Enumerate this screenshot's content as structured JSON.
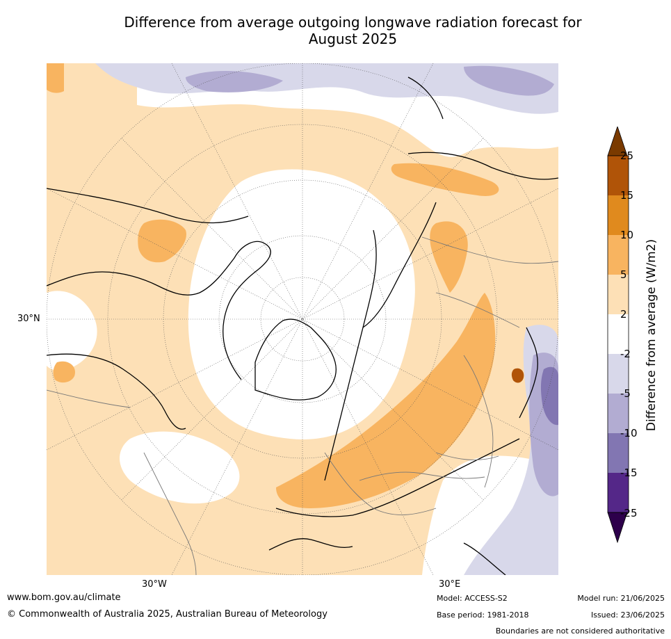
{
  "title_line1": "Difference from average outgoing longwave radiation forecast for",
  "title_line2": "August 2025",
  "map": {
    "latitude_label": "30°N",
    "longitude_labels": [
      "30°W",
      "30°E"
    ]
  },
  "colorbar": {
    "label": "Difference from average (W/m2)",
    "ticks": [
      "25",
      "15",
      "10",
      "5",
      "2",
      "-2",
      "-5",
      "-10",
      "-15",
      "-25"
    ],
    "colors": [
      "#7a3a00",
      "#b05408",
      "#e08a1e",
      "#f8b460",
      "#fde0b6",
      "#ffffff",
      "#d8d8ea",
      "#b2acd2",
      "#8276b2",
      "#542788",
      "#2d004b"
    ]
  },
  "footer": {
    "website": "www.bom.gov.au/climate",
    "copyright": "© Commonwealth of Australia 2025, Australian Bureau of Meteorology",
    "model": "Model: ACCESS-S2",
    "base_period": "Base period: 1981-2018",
    "model_run": "Model run: 21/06/2025",
    "issued": "Issued: 23/06/2025",
    "disclaimer": "Boundaries are not considered authoritative"
  }
}
